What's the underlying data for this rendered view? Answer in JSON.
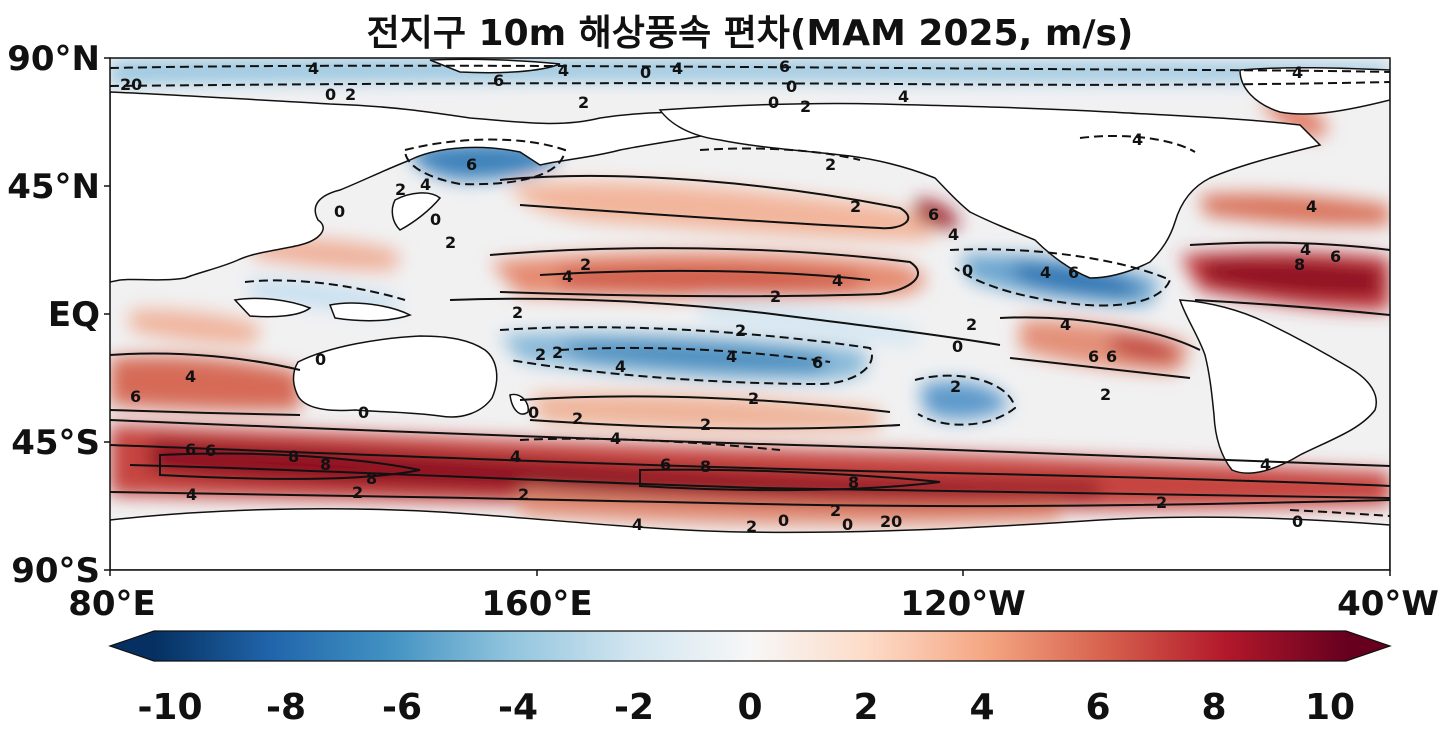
{
  "title": "전지구 10m 해상풍속 편차(MAM 2025, m/s)",
  "map": {
    "y_ticks": [
      "90°N",
      "45°N",
      "EQ",
      "45°S",
      "90°S"
    ],
    "x_ticks": [
      "80°E",
      "160°E",
      "120°W",
      "40°W"
    ],
    "lon_range": [
      80,
      320
    ],
    "lat_range": [
      -90,
      90
    ]
  },
  "colorbar": {
    "ticks": [
      "-10",
      "-8",
      "-6",
      "-4",
      "-2",
      "0",
      "2",
      "4",
      "6",
      "8",
      "10"
    ],
    "range": [
      -10,
      10
    ],
    "colormap": "RdBu_r",
    "low_color": "#053061",
    "high_color": "#67001f",
    "extend": "both"
  },
  "contour_labels": [
    "4",
    "20",
    "0",
    "2",
    "0",
    "6",
    "4",
    "2",
    "4",
    "0",
    "2",
    "0",
    "4",
    "4",
    "6",
    "4",
    "6",
    "2",
    "4",
    "2",
    "0",
    "2",
    "6",
    "4",
    "4",
    "0",
    "2",
    "4",
    "2",
    "0",
    "4",
    "2",
    "2",
    "4",
    "4",
    "6",
    "6",
    "2",
    "0",
    "2",
    "4",
    "8",
    "6",
    "6",
    "0",
    "2",
    "2",
    "4",
    "6",
    "2",
    "2",
    "4",
    "4",
    "6",
    "2",
    "0",
    "2",
    "0",
    "2",
    "4",
    "4",
    "6",
    "6",
    "8",
    "8",
    "4",
    "8",
    "8",
    "6",
    "8",
    "4",
    "2",
    "2",
    "4",
    "0",
    "2",
    "2",
    "0",
    "20",
    "2",
    "0"
  ]
}
